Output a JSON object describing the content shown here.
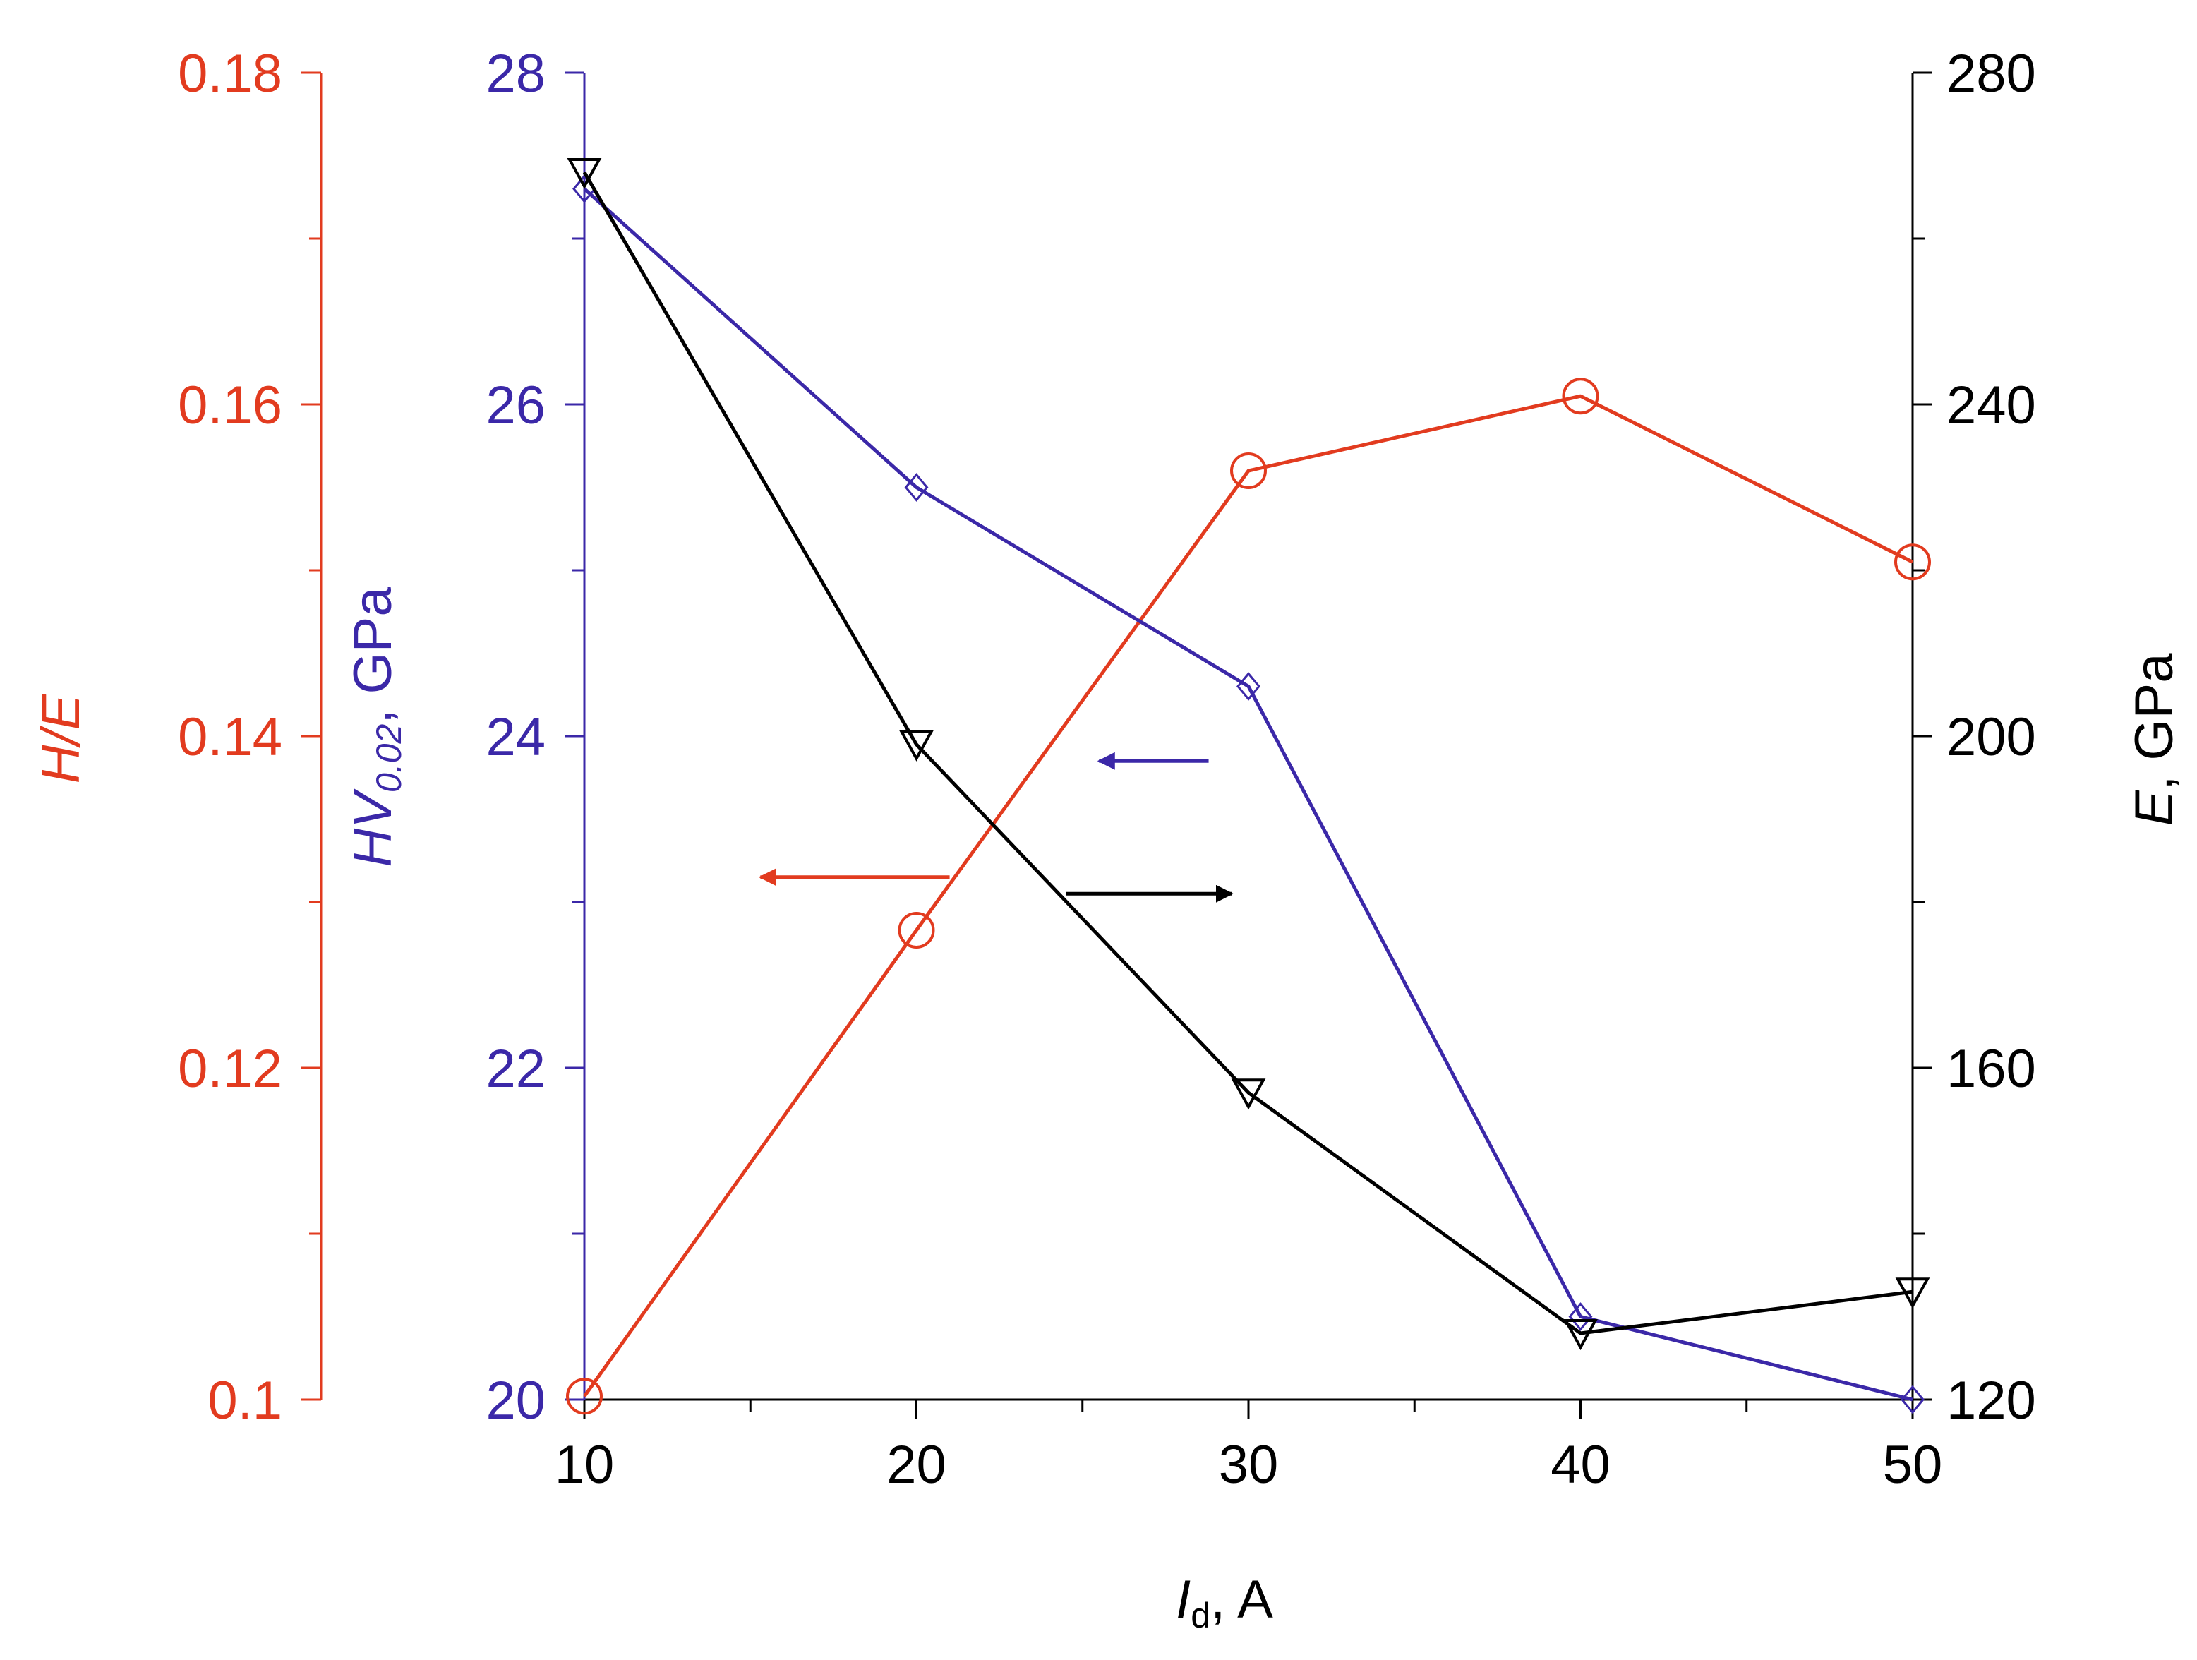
{
  "colors": {
    "he": "#e23b1f",
    "hv": "#3b28a8",
    "e": "#000000"
  },
  "chart_data": {
    "type": "line",
    "x": [
      10,
      20,
      30,
      40,
      50
    ],
    "xlabel_main": "I",
    "xlabel_sub": "d",
    "xlabel_rest": ", A",
    "xlim": [
      10,
      50
    ],
    "x_ticks": [
      "10",
      "20",
      "30",
      "40",
      "50"
    ],
    "axes": {
      "he": {
        "label": "H/E",
        "range": [
          0.1,
          0.18
        ],
        "ticks": [
          "0.1",
          "0.12",
          "0.14",
          "0.16",
          "0.18"
        ],
        "position": "far-left"
      },
      "hv": {
        "label_main": "HV",
        "label_sub": "0.02",
        "label_rest": ", GPa",
        "range": [
          20,
          28
        ],
        "ticks": [
          "20",
          "22",
          "24",
          "26",
          "28"
        ],
        "position": "left"
      },
      "e": {
        "label_main": "E",
        "label_rest": ", GPa",
        "range": [
          120,
          280
        ],
        "ticks": [
          "120",
          "160",
          "200",
          "240",
          "280"
        ],
        "position": "right"
      }
    },
    "series": [
      {
        "name": "H/E",
        "axis": "he",
        "marker": "circle",
        "values": [
          0.1002,
          0.1283,
          0.156,
          0.1605,
          0.1505
        ]
      },
      {
        "name": "HV0.02",
        "axis": "hv",
        "marker": "diamond",
        "values": [
          27.3,
          25.5,
          24.3,
          20.5,
          20.0
        ]
      },
      {
        "name": "E",
        "axis": "e",
        "marker": "triangle-down",
        "values": [
          268,
          199,
          157,
          128,
          133
        ]
      }
    ],
    "annotations": [
      {
        "series": "HV0.02",
        "direction": "left",
        "x_from": 28.8,
        "x_to": 25.5,
        "y": 23.85,
        "axis": "hv"
      },
      {
        "series": "H/E",
        "direction": "left",
        "x_from": 21.0,
        "x_to": 15.3,
        "y": 0.1315,
        "axis": "he"
      },
      {
        "series": "E",
        "direction": "right",
        "x_from": 24.5,
        "x_to": 29.5,
        "y": 181,
        "axis": "e"
      }
    ]
  }
}
